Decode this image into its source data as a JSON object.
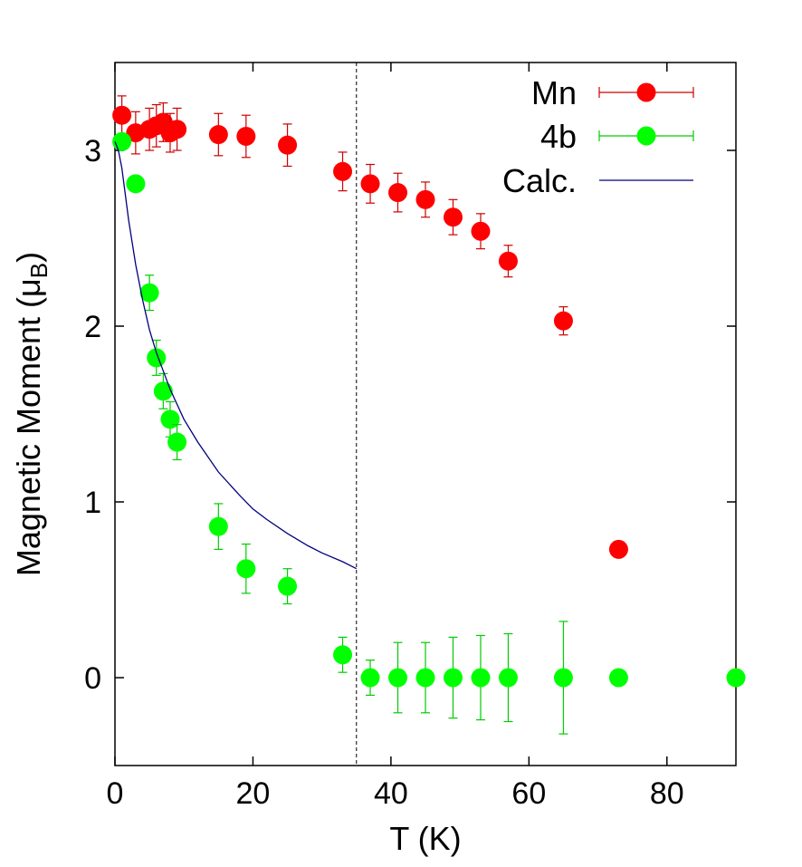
{
  "chart_data": {
    "type": "scatter",
    "title": "",
    "xlabel": "T (K)",
    "ylabel_main": "Magnetic Moment (μ",
    "ylabel_sub": "B",
    "ylabel_close": ")",
    "xlim": [
      0,
      90
    ],
    "ylim": [
      -0.5,
      3.5
    ],
    "xticks": [
      0,
      20,
      40,
      60,
      80
    ],
    "xtick_labels": [
      "0",
      "20",
      "40",
      "60",
      "80"
    ],
    "yticks": [
      0,
      1,
      2,
      3
    ],
    "ytick_labels": [
      "0",
      "1",
      "2",
      "3"
    ],
    "grid": false,
    "legend_position": "top-right",
    "vline_x": 35,
    "series": [
      {
        "name": "Mn",
        "kind": "errorbar",
        "color": "#ff0000",
        "errcolor": "#cc0000",
        "x": [
          1,
          3,
          5,
          6,
          7,
          8,
          9,
          15,
          19,
          25,
          33,
          37,
          41,
          45,
          49,
          53,
          57,
          65,
          73
        ],
        "y": [
          3.2,
          3.1,
          3.12,
          3.14,
          3.16,
          3.1,
          3.12,
          3.09,
          3.08,
          3.03,
          2.88,
          2.81,
          2.76,
          2.72,
          2.62,
          2.54,
          2.37,
          2.03,
          0.73
        ],
        "err": [
          0.11,
          0.12,
          0.12,
          0.12,
          0.11,
          0.11,
          0.12,
          0.12,
          0.12,
          0.12,
          0.11,
          0.11,
          0.11,
          0.1,
          0.1,
          0.1,
          0.09,
          0.08,
          0.0
        ]
      },
      {
        "name": "4b",
        "kind": "errorbar",
        "color": "#00ff00",
        "errcolor": "#00cc00",
        "x": [
          1,
          3,
          5,
          6,
          7,
          8,
          9,
          15,
          19,
          25,
          33,
          37,
          41,
          45,
          49,
          53,
          57,
          65,
          73,
          90
        ],
        "y": [
          3.05,
          2.81,
          2.19,
          1.82,
          1.63,
          1.47,
          1.34,
          0.86,
          0.62,
          0.52,
          0.13,
          0.0,
          0.0,
          0.0,
          0.0,
          0.0,
          0.0,
          0.0,
          0.0,
          0.0
        ],
        "err": [
          0.0,
          0.0,
          0.1,
          0.1,
          0.1,
          0.1,
          0.1,
          0.13,
          0.14,
          0.1,
          0.1,
          0.1,
          0.2,
          0.2,
          0.23,
          0.24,
          0.25,
          0.32,
          0.0,
          0.0
        ]
      },
      {
        "name": "Calc.",
        "kind": "line",
        "color": "#000080",
        "x": [
          0,
          0.5,
          1,
          1.5,
          2,
          3,
          4,
          5,
          6,
          8,
          10,
          12,
          15,
          18,
          20,
          22,
          25,
          28,
          30,
          33,
          35
        ],
        "y": [
          3.05,
          3.0,
          2.9,
          2.75,
          2.6,
          2.35,
          2.15,
          1.98,
          1.85,
          1.64,
          1.47,
          1.34,
          1.17,
          1.04,
          0.96,
          0.9,
          0.82,
          0.75,
          0.71,
          0.66,
          0.62
        ]
      }
    ]
  }
}
